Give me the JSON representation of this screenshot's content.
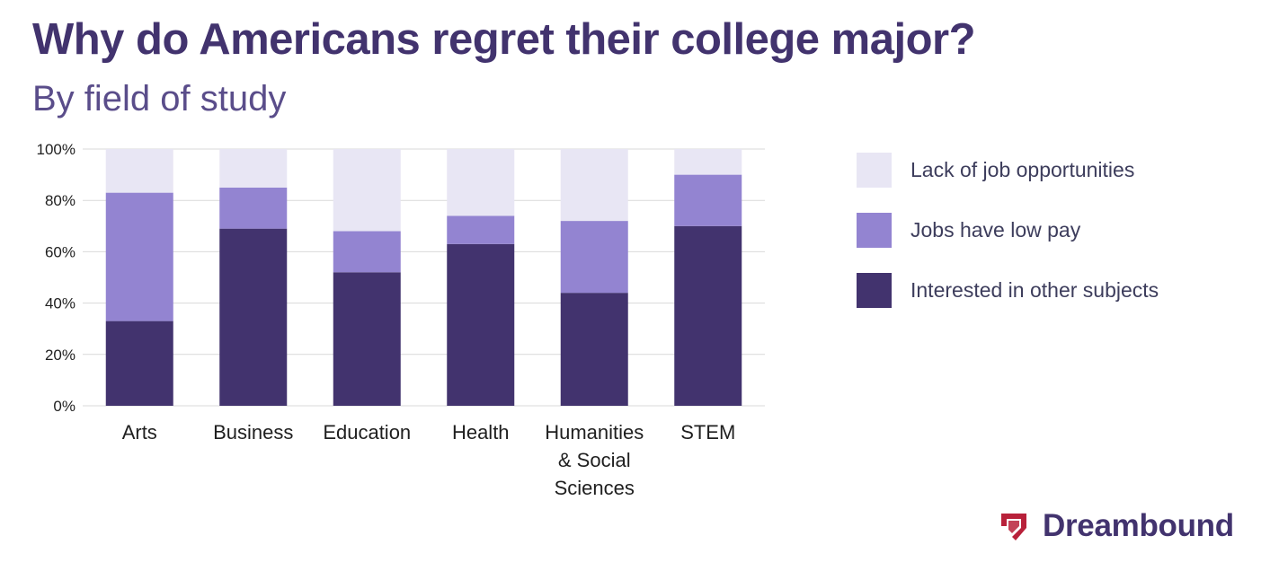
{
  "header": {
    "title": "Why do Americans regret their college major?",
    "subtitle": "By field of study"
  },
  "brand": {
    "name": "Dreambound",
    "logo_icon": "dreambound-shield-logo",
    "logo_color": "#b8213a"
  },
  "colors": {
    "interested": "#42336e",
    "low_pay": "#9384d1",
    "no_jobs": "#e8e6f4",
    "grid": "#d9d9d9"
  },
  "chart_data": {
    "type": "bar",
    "stacked": true,
    "title": "Why do Americans regret their college major?",
    "subtitle": "By field of study",
    "categories": [
      [
        "Arts"
      ],
      [
        "Business"
      ],
      [
        "Education"
      ],
      [
        "Health"
      ],
      [
        "Humanities",
        "& Social",
        "Sciences"
      ],
      [
        "STEM"
      ]
    ],
    "series": [
      {
        "name": "Interested in other subjects",
        "color": "#42336e",
        "values": [
          33,
          69,
          52,
          63,
          44,
          70
        ]
      },
      {
        "name": "Jobs have low pay",
        "color": "#9384d1",
        "values": [
          50,
          16,
          16,
          11,
          28,
          20
        ]
      },
      {
        "name": "Lack of job opportunities",
        "color": "#e8e6f4",
        "values": [
          17,
          15,
          32,
          26,
          28,
          10
        ]
      }
    ],
    "y_ticks": [
      "0%",
      "20%",
      "40%",
      "60%",
      "80%",
      "100%"
    ],
    "ylim": [
      0,
      100
    ],
    "grid": true,
    "legend_position": "right",
    "legend_order": [
      "Lack of job opportunities",
      "Jobs have low pay",
      "Interested in other subjects"
    ]
  }
}
